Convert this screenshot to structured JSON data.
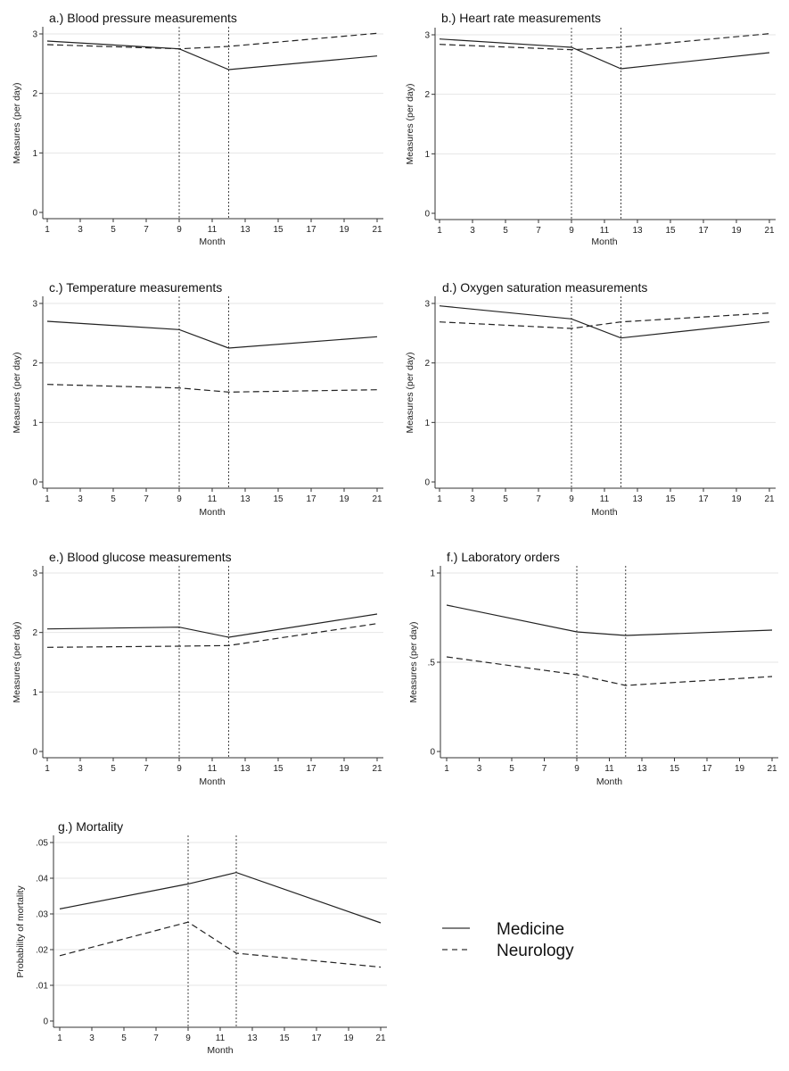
{
  "legend": {
    "entries": [
      {
        "label": "Medicine",
        "style": "solid"
      },
      {
        "label": "Neurology",
        "style": "dashed"
      }
    ]
  },
  "chart_data": [
    {
      "id": "a",
      "type": "line",
      "title": "a.) Blood pressure measurements",
      "xlabel": "Month",
      "ylabel": "Measures (per day)",
      "xlim": [
        1,
        21
      ],
      "ylim": [
        0,
        3
      ],
      "xticks": [
        1,
        3,
        5,
        7,
        9,
        11,
        13,
        15,
        17,
        19,
        21
      ],
      "yticks": [
        {
          "v": 0,
          "label": "0"
        },
        {
          "v": 1,
          "label": "1"
        },
        {
          "v": 2,
          "label": "2"
        },
        {
          "v": 3,
          "label": "3"
        }
      ],
      "vlines": [
        9,
        12
      ],
      "grid": true,
      "series": [
        {
          "name": "Medicine",
          "x": [
            1,
            9,
            12,
            21
          ],
          "y": [
            2.88,
            2.75,
            2.4,
            2.63
          ]
        },
        {
          "name": "Neurology",
          "x": [
            1,
            9,
            12,
            21
          ],
          "y": [
            2.82,
            2.75,
            2.79,
            3.01
          ]
        }
      ]
    },
    {
      "id": "b",
      "type": "line",
      "title": "b.) Heart rate measurements",
      "xlabel": "Month",
      "ylabel": "Measures (per day)",
      "xlim": [
        1,
        21
      ],
      "ylim": [
        0,
        3
      ],
      "xticks": [
        1,
        3,
        5,
        7,
        9,
        11,
        13,
        15,
        17,
        19,
        21
      ],
      "yticks": [
        {
          "v": 0,
          "label": "0"
        },
        {
          "v": 1,
          "label": "1"
        },
        {
          "v": 2,
          "label": "2"
        },
        {
          "v": 3,
          "label": "3"
        }
      ],
      "vlines": [
        9,
        12
      ],
      "grid": true,
      "series": [
        {
          "name": "Medicine",
          "x": [
            1,
            9,
            12,
            21
          ],
          "y": [
            2.93,
            2.79,
            2.43,
            2.7
          ]
        },
        {
          "name": "Neurology",
          "x": [
            1,
            9,
            12,
            21
          ],
          "y": [
            2.84,
            2.75,
            2.79,
            3.02
          ]
        }
      ]
    },
    {
      "id": "c",
      "type": "line",
      "title": "c.) Temperature measurements",
      "xlabel": "Month",
      "ylabel": "Measures (per day)",
      "xlim": [
        1,
        21
      ],
      "ylim": [
        0,
        3
      ],
      "xticks": [
        1,
        3,
        5,
        7,
        9,
        11,
        13,
        15,
        17,
        19,
        21
      ],
      "yticks": [
        {
          "v": 0,
          "label": "0"
        },
        {
          "v": 1,
          "label": "1"
        },
        {
          "v": 2,
          "label": "2"
        },
        {
          "v": 3,
          "label": "3"
        }
      ],
      "vlines": [
        9,
        12
      ],
      "grid": true,
      "series": [
        {
          "name": "Medicine",
          "x": [
            1,
            9,
            12,
            21
          ],
          "y": [
            2.7,
            2.56,
            2.25,
            2.44
          ]
        },
        {
          "name": "Neurology",
          "x": [
            1,
            9,
            12,
            21
          ],
          "y": [
            1.64,
            1.58,
            1.51,
            1.55
          ]
        }
      ]
    },
    {
      "id": "d",
      "type": "line",
      "title": "d.) Oxygen saturation measurements",
      "xlabel": "Month",
      "ylabel": "Measures (per day)",
      "xlim": [
        1,
        21
      ],
      "ylim": [
        0,
        3
      ],
      "xticks": [
        1,
        3,
        5,
        7,
        9,
        11,
        13,
        15,
        17,
        19,
        21
      ],
      "yticks": [
        {
          "v": 0,
          "label": "0"
        },
        {
          "v": 1,
          "label": "1"
        },
        {
          "v": 2,
          "label": "2"
        },
        {
          "v": 3,
          "label": "3"
        }
      ],
      "vlines": [
        9,
        12
      ],
      "grid": true,
      "series": [
        {
          "name": "Medicine",
          "x": [
            1,
            9,
            12,
            21
          ],
          "y": [
            2.96,
            2.74,
            2.42,
            2.69
          ]
        },
        {
          "name": "Neurology",
          "x": [
            1,
            9,
            12,
            21
          ],
          "y": [
            2.69,
            2.58,
            2.69,
            2.84
          ]
        }
      ]
    },
    {
      "id": "e",
      "type": "line",
      "title": "e.) Blood glucose measurements",
      "xlabel": "Month",
      "ylabel": "Measures (per day)",
      "xlim": [
        1,
        21
      ],
      "ylim": [
        0,
        3
      ],
      "xticks": [
        1,
        3,
        5,
        7,
        9,
        11,
        13,
        15,
        17,
        19,
        21
      ],
      "yticks": [
        {
          "v": 0,
          "label": "0"
        },
        {
          "v": 1,
          "label": "1"
        },
        {
          "v": 2,
          "label": "2"
        },
        {
          "v": 3,
          "label": "3"
        }
      ],
      "vlines": [
        9,
        12
      ],
      "grid": true,
      "series": [
        {
          "name": "Medicine",
          "x": [
            1,
            9,
            12,
            21
          ],
          "y": [
            2.06,
            2.09,
            1.92,
            2.31
          ]
        },
        {
          "name": "Neurology",
          "x": [
            1,
            9,
            12,
            21
          ],
          "y": [
            1.75,
            1.77,
            1.78,
            2.15
          ]
        }
      ]
    },
    {
      "id": "f",
      "type": "line",
      "title": "f.) Laboratory orders",
      "xlabel": "Month",
      "ylabel": "Measures (per day)",
      "xlim": [
        1,
        21
      ],
      "ylim": [
        0,
        1
      ],
      "xticks": [
        1,
        3,
        5,
        7,
        9,
        11,
        13,
        15,
        17,
        19,
        21
      ],
      "yticks": [
        {
          "v": 0,
          "label": "0"
        },
        {
          "v": 0.5,
          "label": ".5"
        },
        {
          "v": 1,
          "label": "1"
        }
      ],
      "vlines": [
        9,
        12
      ],
      "grid": true,
      "series": [
        {
          "name": "Medicine",
          "x": [
            1,
            9,
            12,
            21
          ],
          "y": [
            0.82,
            0.67,
            0.65,
            0.68
          ]
        },
        {
          "name": "Neurology",
          "x": [
            1,
            9,
            12,
            21
          ],
          "y": [
            0.53,
            0.43,
            0.37,
            0.42
          ]
        }
      ]
    },
    {
      "id": "g",
      "type": "line",
      "title": "g.) Mortality",
      "xlabel": "Month",
      "ylabel": "Probability of mortality",
      "xlim": [
        1,
        21
      ],
      "ylim": [
        0,
        0.05
      ],
      "xticks": [
        1,
        3,
        5,
        7,
        9,
        11,
        13,
        15,
        17,
        19,
        21
      ],
      "yticks": [
        {
          "v": 0,
          "label": "0"
        },
        {
          "v": 0.01,
          "label": ".01"
        },
        {
          "v": 0.02,
          "label": ".02"
        },
        {
          "v": 0.03,
          "label": ".03"
        },
        {
          "v": 0.04,
          "label": ".04"
        },
        {
          "v": 0.05,
          "label": ".05"
        }
      ],
      "vlines": [
        9,
        12
      ],
      "grid": true,
      "series": [
        {
          "name": "Medicine",
          "x": [
            1,
            9,
            12,
            21
          ],
          "y": [
            0.0314,
            0.0384,
            0.0416,
            0.0275
          ]
        },
        {
          "name": "Neurology",
          "x": [
            1,
            9,
            12,
            21
          ],
          "y": [
            0.0183,
            0.0277,
            0.019,
            0.0151
          ]
        }
      ]
    }
  ]
}
